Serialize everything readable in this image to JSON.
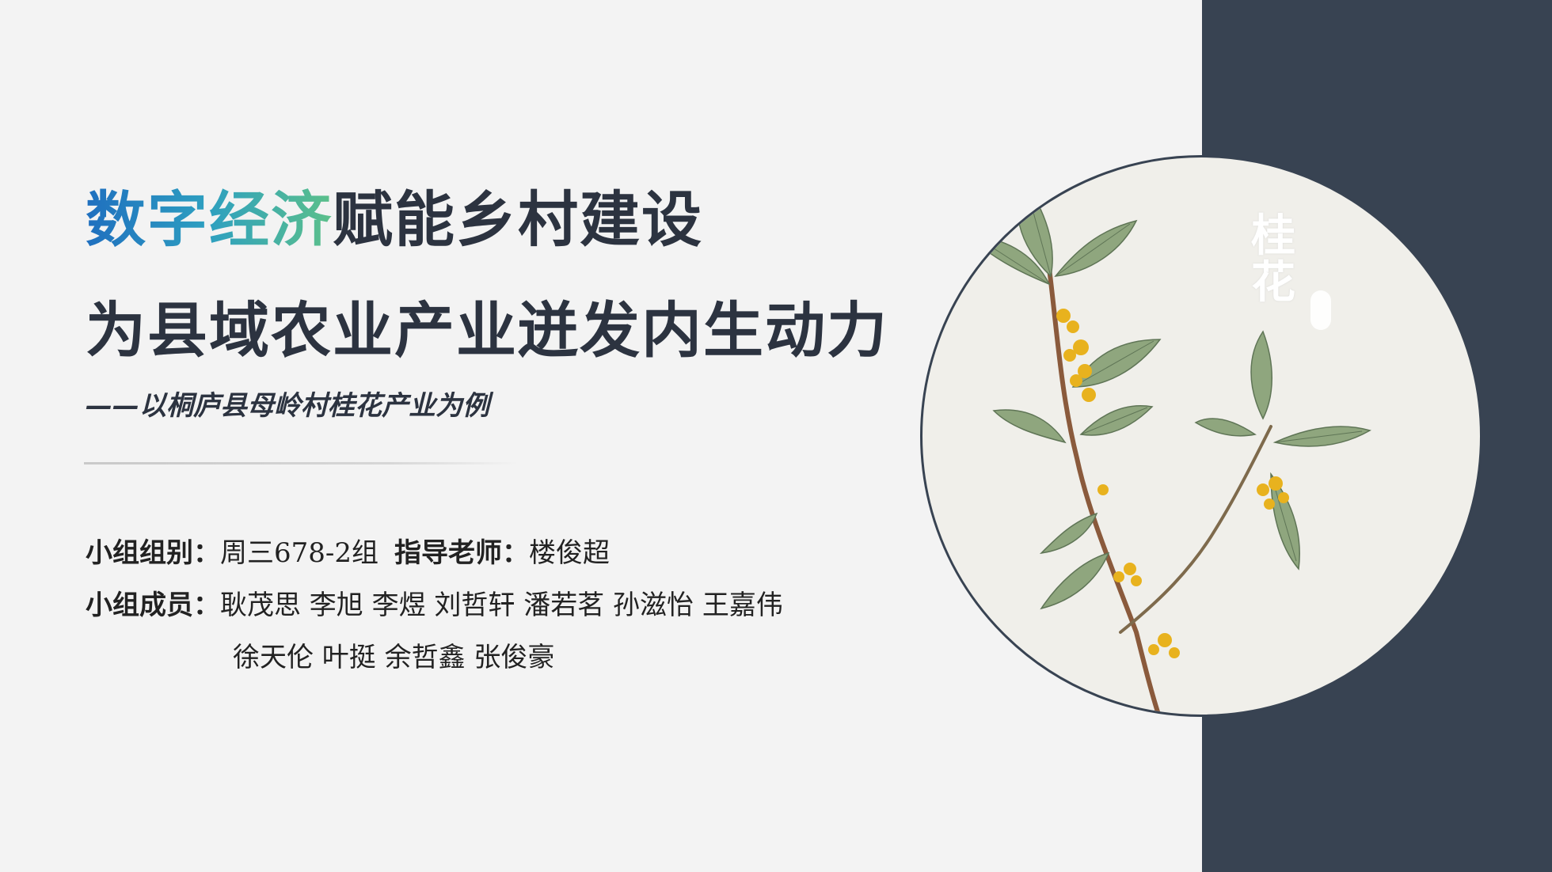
{
  "title": {
    "line1_accent": "数字经济",
    "line1_rest": "赋能乡村建设",
    "line2": "为县域农业产业迸发内生动力",
    "subtitle": "——以桐庐县母岭村桂花产业为例"
  },
  "info": {
    "group_label": "小组组别：",
    "group_value": "周三678-2组",
    "teacher_label": "指导老师：",
    "teacher_value": "楼俊超",
    "members_label": "小组成员：",
    "members_line1": "耿茂思  李旭  李煜  刘哲轩  潘若茗  孙滋怡  王嘉伟",
    "members_line2": "徐天伦  叶挺  余哲鑫  张俊豪"
  },
  "illustration": {
    "title_char1": "桂",
    "title_char2": "花",
    "icon": "osmanthus-branch-illustration"
  },
  "colors": {
    "background": "#f3f3f3",
    "panel": "#384352",
    "text": "#2c3340",
    "accent_start": "#1f6fbf",
    "accent_end": "#5cc08a",
    "blossom": "#e8b21e",
    "leaf": "#7d9670"
  }
}
